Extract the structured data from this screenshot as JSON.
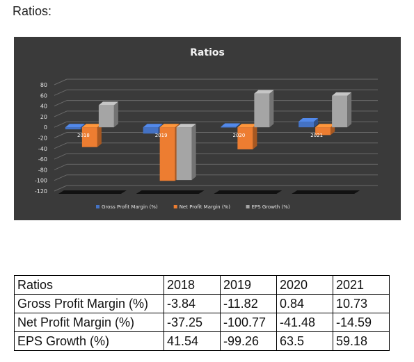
{
  "heading": "Ratios:",
  "chart_data": {
    "type": "bar",
    "title": "Ratios",
    "categories": [
      "2018",
      "2019",
      "2020",
      "2021"
    ],
    "series": [
      {
        "name": "Gross Profit Margin (%)",
        "values": [
          -3.84,
          -11.82,
          0.84,
          10.73
        ],
        "color": "#4472c4"
      },
      {
        "name": "Net Profit Margin (%)",
        "values": [
          -37.25,
          -100.77,
          -41.48,
          -14.59
        ],
        "color": "#ed7d31"
      },
      {
        "name": "EPS Growth (%)",
        "values": [
          41.54,
          -99.26,
          63.5,
          59.18
        ],
        "color": "#a5a5a5"
      }
    ],
    "ylim": [
      -120,
      80
    ],
    "yticks": [
      80,
      60,
      40,
      20,
      0,
      -20,
      -40,
      -60,
      -80,
      -100,
      -120
    ],
    "grid": true,
    "legend": "bottom",
    "style": "3d-clustered-column"
  },
  "table": {
    "header": [
      "Ratios",
      "2018",
      "2019",
      "2020",
      "2021"
    ],
    "rows": [
      [
        "Gross Profit Margin (%)",
        "-3.84",
        "-11.82",
        "0.84",
        "10.73"
      ],
      [
        "Net Profit Margin (%)",
        "-37.25",
        "-100.77",
        "-41.48",
        "-14.59"
      ],
      [
        "EPS Growth (%)",
        "41.54",
        "-99.26",
        "63.5",
        "59.18"
      ]
    ]
  }
}
